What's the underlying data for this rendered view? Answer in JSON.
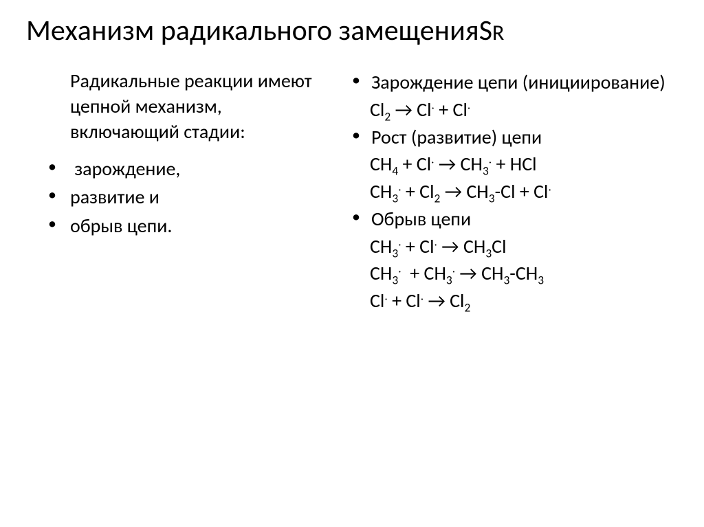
{
  "title": {
    "main": "Механизм радикального замещенияS",
    "suffix": "R"
  },
  "left": {
    "intro": "Радикальные реакции имеют цепной механизм, включающий стадии:",
    "items": [
      " зарождение,",
      "развитие и",
      "обрыв цепи."
    ]
  },
  "right": {
    "sections": [
      {
        "label": "Зарождение цепи (инициирование)"
      },
      {
        "label": "Рост (развитие) цепи"
      },
      {
        "label": "Обрыв цепи"
      }
    ],
    "eq": {
      "init": "Cl<sub>2</sub> → Cl<span class='dot'>.</span> + Cl<span class='dot'>.</span>",
      "grow1": "CH<sub>4</sub> + Cl<span class='dot'>.</span> → CH<sub>3</sub><span class='dot'>.</span> + HCl",
      "grow2": "CH<sub>3</sub><span class='dot'>.</span> + Cl<sub>2</sub> → CH<sub>3</sub>-Cl + Cl<span class='dot'>.</span>",
      "term1": "CH<sub>3</sub><span class='dot'>.</span> + Cl<span class='dot'>.</span> → CH<sub>3</sub>Cl",
      "term2": "CH<sub>3</sub><span class='dot'>.</span>  + CH<sub>3</sub><span class='dot'>.</span> → CH<sub>3</sub>-CH<sub>3</sub>",
      "term3": "Cl<span class='dot'>.</span> + Cl<span class='dot'>.</span> → Cl<sub>2</sub>"
    }
  }
}
